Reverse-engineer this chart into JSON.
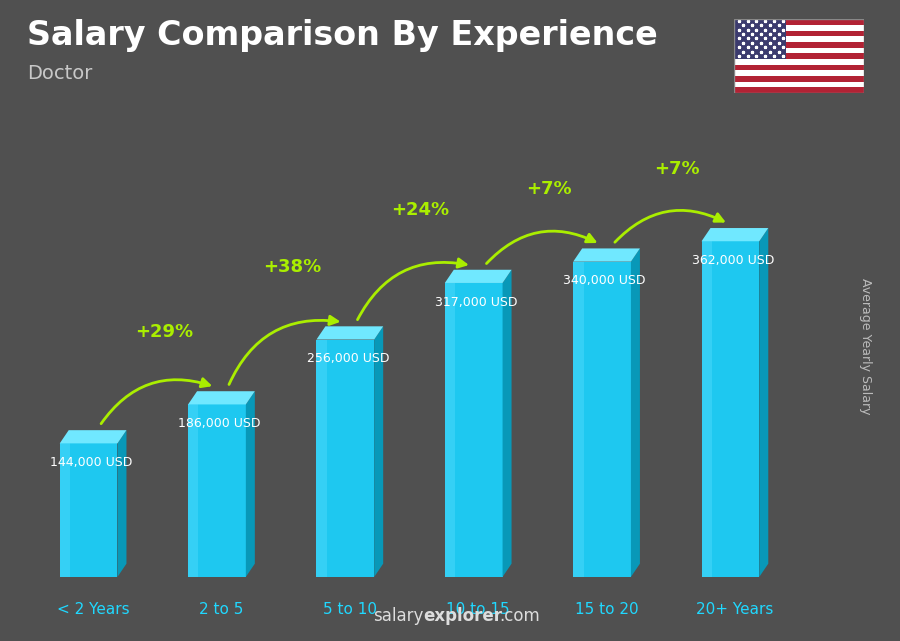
{
  "title": "Salary Comparison By Experience",
  "subtitle": "Doctor",
  "ylabel": "Average Yearly Salary",
  "watermark_salary": "salary",
  "watermark_explorer": "explorer",
  "watermark_rest": ".com",
  "categories": [
    "< 2 Years",
    "2 to 5",
    "5 to 10",
    "10 to 15",
    "15 to 20",
    "20+ Years"
  ],
  "values": [
    144000,
    186000,
    256000,
    317000,
    340000,
    362000
  ],
  "labels": [
    "144,000 USD",
    "186,000 USD",
    "256,000 USD",
    "317,000 USD",
    "340,000 USD",
    "362,000 USD"
  ],
  "pct_changes": [
    null,
    "+29%",
    "+38%",
    "+24%",
    "+7%",
    "+7%"
  ],
  "bar_face_color": "#1EC8F0",
  "bar_top_color": "#70E8FF",
  "bar_side_color": "#0898B8",
  "bg_dark": "#3A3A3A",
  "bg_mid": "#505050",
  "title_color": "#FFFFFF",
  "subtitle_color": "#C8C8C8",
  "label_color": "#FFFFFF",
  "pct_color": "#AAEE00",
  "tick_color": "#20D8FF",
  "arrow_color": "#AAEE00",
  "watermark_color": "#DDDDDD",
  "ylabel_color": "#BBBBBB",
  "title_fontsize": 24,
  "subtitle_fontsize": 14,
  "label_fontsize": 9,
  "pct_fontsize": 13,
  "tick_fontsize": 11,
  "ylabel_fontsize": 9,
  "watermark_fontsize": 12
}
